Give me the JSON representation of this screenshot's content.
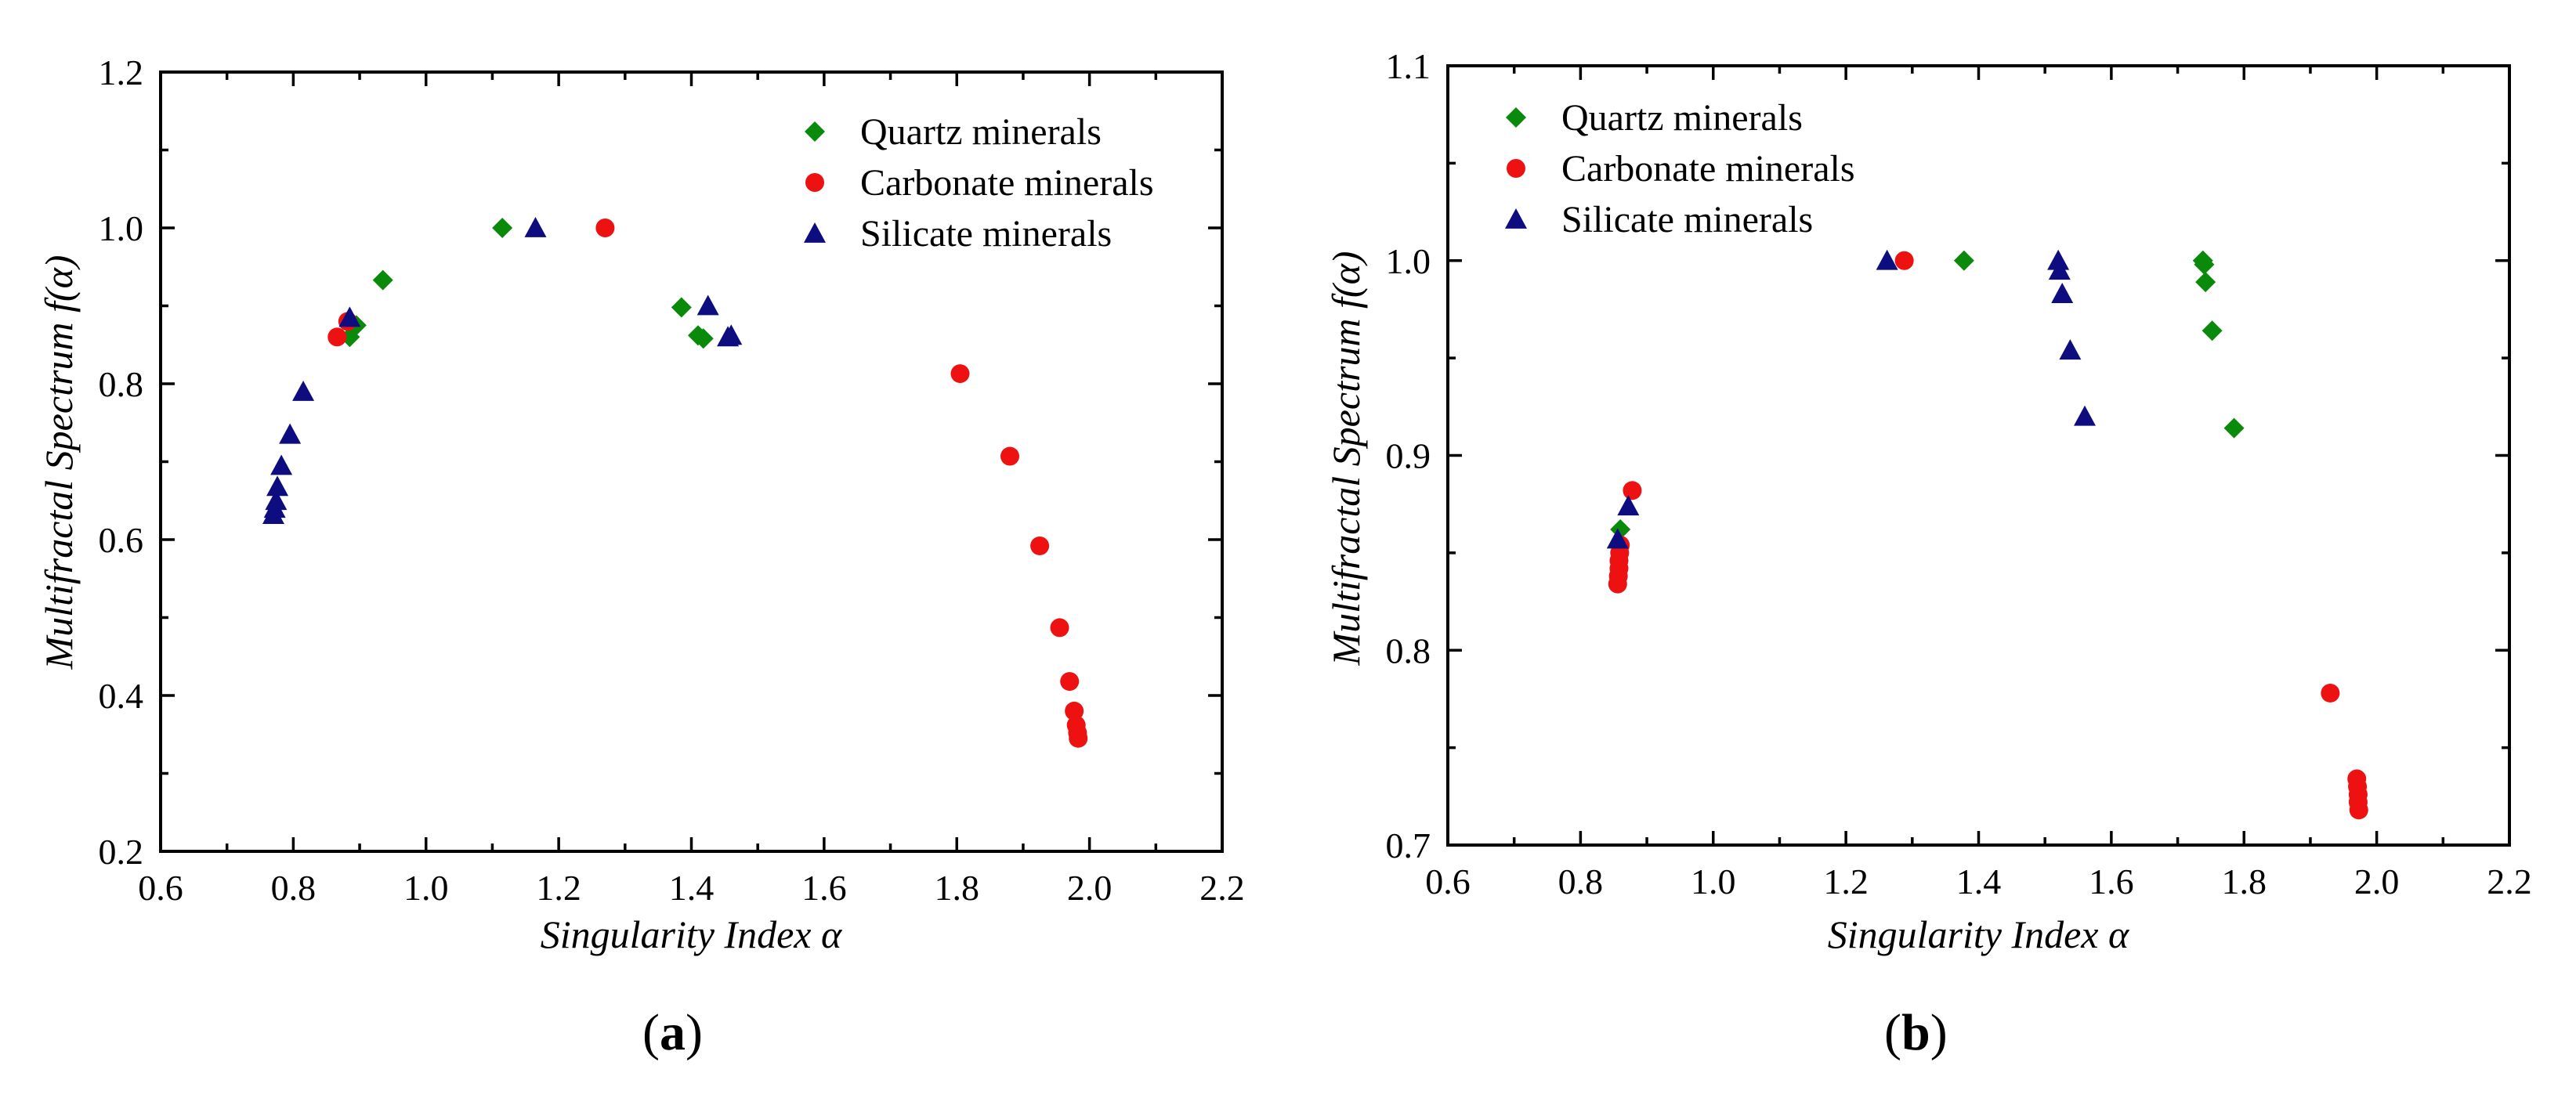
{
  "colors": {
    "quartz": "#0a8a0a",
    "carbonate": "#ee1111",
    "silicate": "#0d0d80"
  },
  "chart_data": [
    {
      "type": "scatter",
      "panel_label": "a",
      "xlabel": "Singularity Index α",
      "ylabel": "Multifractal Spectrum f(α)",
      "xlim": [
        0.6,
        2.2
      ],
      "ylim": [
        0.2,
        1.2
      ],
      "xticks": [
        "0.6",
        "0.8",
        "1.0",
        "1.2",
        "1.4",
        "1.6",
        "1.8",
        "2.0",
        "2.2"
      ],
      "yticks": [
        "0.2",
        "0.4",
        "0.6",
        "0.8",
        "1.0",
        "1.2"
      ],
      "legend_position": "top-right",
      "series": [
        {
          "name": "Quartz minerals",
          "marker": "diamond",
          "color_key": "quartz",
          "points": [
            [
              0.885,
              0.86
            ],
            [
              0.895,
              0.875
            ],
            [
              0.935,
              0.933
            ],
            [
              1.115,
              1.0
            ],
            [
              1.385,
              0.898
            ],
            [
              1.41,
              0.862
            ],
            [
              1.418,
              0.858
            ]
          ]
        },
        {
          "name": "Carbonate minerals",
          "marker": "circle",
          "color_key": "carbonate",
          "points": [
            [
              0.866,
              0.86
            ],
            [
              0.882,
              0.88
            ],
            [
              1.27,
              1.0
            ],
            [
              1.805,
              0.813
            ],
            [
              1.88,
              0.707
            ],
            [
              1.925,
              0.592
            ],
            [
              1.955,
              0.487
            ],
            [
              1.97,
              0.418
            ],
            [
              1.977,
              0.38
            ],
            [
              1.98,
              0.362
            ],
            [
              1.982,
              0.352
            ],
            [
              1.983,
              0.345
            ]
          ]
        },
        {
          "name": "Silicate minerals",
          "marker": "triangle",
          "color_key": "silicate",
          "points": [
            [
              0.77,
              0.632
            ],
            [
              0.772,
              0.64
            ],
            [
              0.774,
              0.65
            ],
            [
              0.776,
              0.668
            ],
            [
              0.782,
              0.695
            ],
            [
              0.795,
              0.735
            ],
            [
              0.815,
              0.79
            ],
            [
              0.885,
              0.885
            ],
            [
              1.165,
              1.0
            ],
            [
              1.425,
              0.9
            ],
            [
              1.455,
              0.86
            ],
            [
              1.46,
              0.862
            ]
          ]
        }
      ]
    },
    {
      "type": "scatter",
      "panel_label": "b",
      "xlabel": "Singularity Index α",
      "ylabel": "Multifractal Spectrum f(α)",
      "xlim": [
        0.6,
        2.2
      ],
      "ylim": [
        0.7,
        1.1
      ],
      "xticks": [
        "0.6",
        "0.8",
        "1.0",
        "1.2",
        "1.4",
        "1.6",
        "1.8",
        "2.0",
        "2.2"
      ],
      "yticks": [
        "0.7",
        "0.8",
        "0.9",
        "1.0",
        "1.1"
      ],
      "legend_position": "top-left",
      "series": [
        {
          "name": "Quartz minerals",
          "marker": "diamond",
          "color_key": "quartz",
          "points": [
            [
              0.86,
              0.862
            ],
            [
              1.378,
              1.0
            ],
            [
              1.738,
              1.0
            ],
            [
              1.74,
              0.998
            ],
            [
              1.742,
              0.989
            ],
            [
              1.752,
              0.964
            ],
            [
              1.785,
              0.914
            ]
          ]
        },
        {
          "name": "Carbonate minerals",
          "marker": "circle",
          "color_key": "carbonate",
          "points": [
            [
              0.856,
              0.834
            ],
            [
              0.857,
              0.838
            ],
            [
              0.858,
              0.842
            ],
            [
              0.858,
              0.846
            ],
            [
              0.859,
              0.85
            ],
            [
              0.86,
              0.854
            ],
            [
              0.878,
              0.882
            ],
            [
              1.288,
              1.0
            ],
            [
              1.93,
              0.778
            ],
            [
              1.97,
              0.734
            ],
            [
              1.971,
              0.73
            ],
            [
              1.972,
              0.726
            ],
            [
              1.972,
              0.722
            ],
            [
              1.973,
              0.718
            ]
          ]
        },
        {
          "name": "Silicate minerals",
          "marker": "triangle",
          "color_key": "silicate",
          "points": [
            [
              0.856,
              0.857
            ],
            [
              0.872,
              0.874
            ],
            [
              1.262,
              1.0
            ],
            [
              1.52,
              1.0
            ],
            [
              1.522,
              0.995
            ],
            [
              1.526,
              0.983
            ],
            [
              1.538,
              0.954
            ],
            [
              1.56,
              0.92
            ]
          ]
        }
      ]
    }
  ]
}
